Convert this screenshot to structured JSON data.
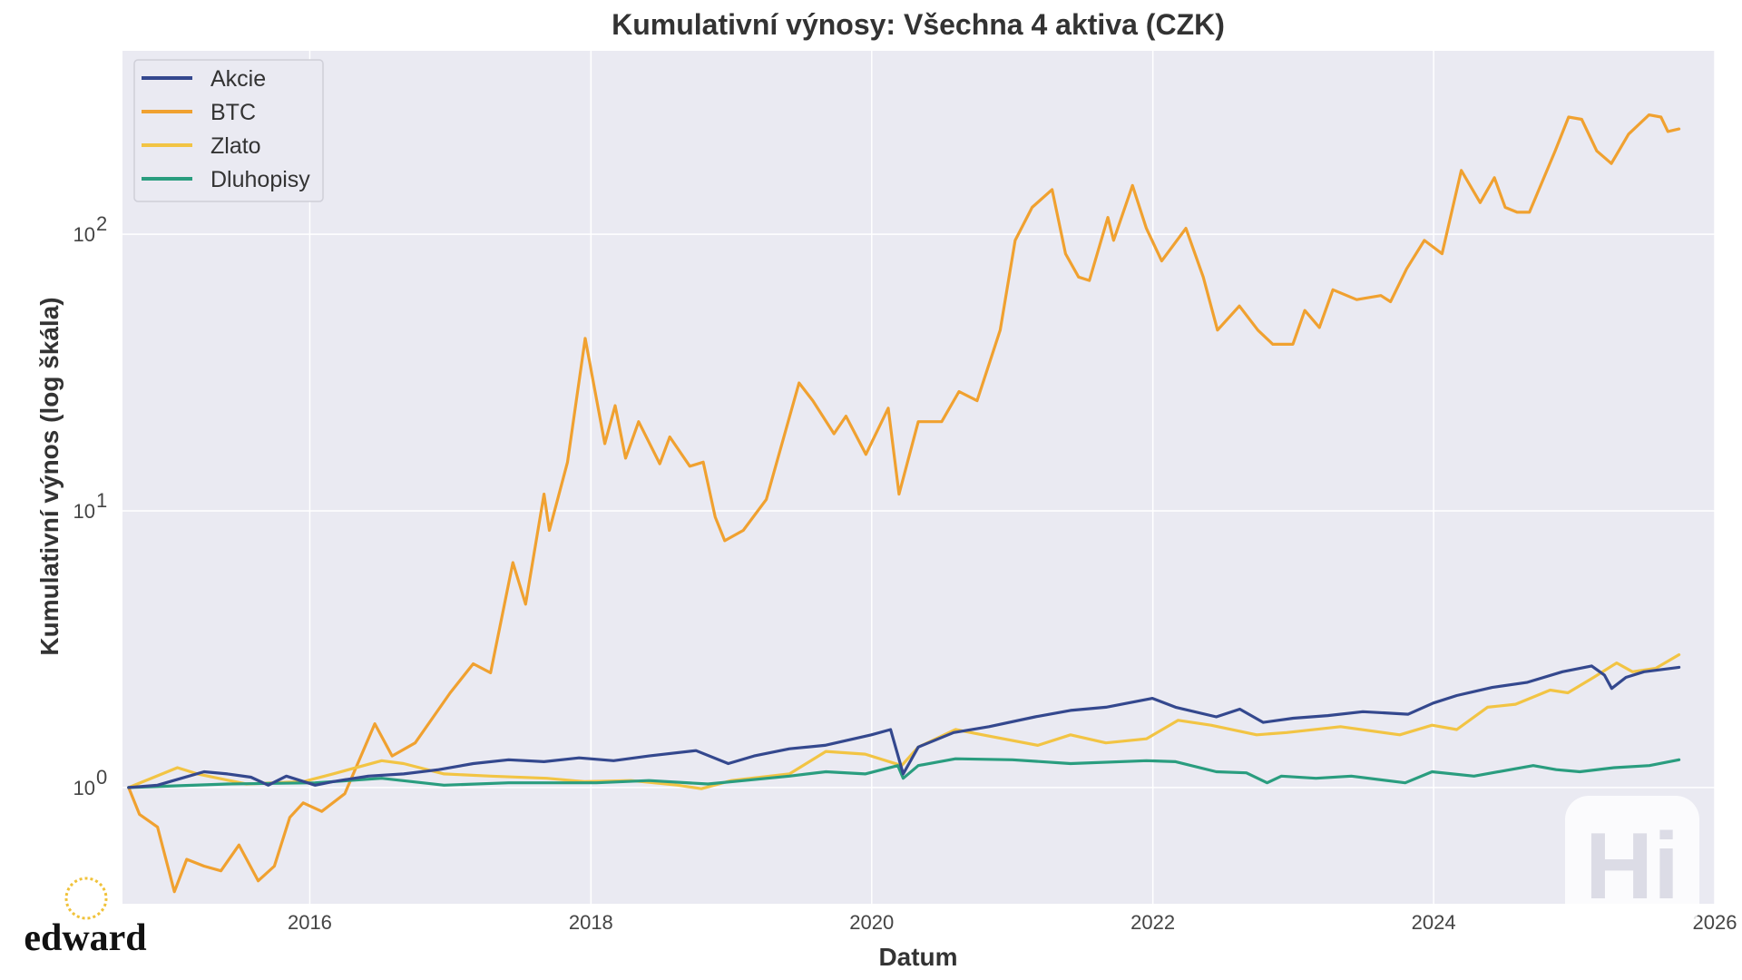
{
  "chart_data": {
    "type": "line",
    "title": "Kumulativní výnosy: Všechna 4 aktiva (CZK)",
    "xlabel": "Datum",
    "ylabel": "Kumulativní výnos (log škála)",
    "yscale": "log",
    "xlim": [
      "2014-09-01",
      "2026-01-01"
    ],
    "ylim": [
      0.38,
      460
    ],
    "xticks": [
      "2016",
      "2018",
      "2020",
      "2022",
      "2024",
      "2026"
    ],
    "yticks": [
      {
        "base": "10",
        "exp": "0",
        "value": 1
      },
      {
        "base": "10",
        "exp": "1",
        "value": 10
      },
      {
        "base": "10",
        "exp": "2",
        "value": 100
      }
    ],
    "grid": true,
    "legend_position": "top-left",
    "series": [
      {
        "name": "Akcie",
        "color": "#34488e",
        "points": [
          [
            "2014-09-17",
            1.0
          ],
          [
            "2014-12-01",
            1.02
          ],
          [
            "2015-02-01",
            1.08
          ],
          [
            "2015-04-01",
            1.14
          ],
          [
            "2015-06-01",
            1.12
          ],
          [
            "2015-08-01",
            1.09
          ],
          [
            "2015-09-15",
            1.02
          ],
          [
            "2015-11-01",
            1.1
          ],
          [
            "2016-01-15",
            1.02
          ],
          [
            "2016-03-01",
            1.05
          ],
          [
            "2016-06-01",
            1.1
          ],
          [
            "2016-09-01",
            1.12
          ],
          [
            "2016-12-01",
            1.16
          ],
          [
            "2017-03-01",
            1.22
          ],
          [
            "2017-06-01",
            1.26
          ],
          [
            "2017-09-01",
            1.24
          ],
          [
            "2017-12-01",
            1.28
          ],
          [
            "2018-03-01",
            1.25
          ],
          [
            "2018-06-01",
            1.3
          ],
          [
            "2018-10-01",
            1.36
          ],
          [
            "2018-12-24",
            1.22
          ],
          [
            "2019-03-01",
            1.3
          ],
          [
            "2019-06-01",
            1.38
          ],
          [
            "2019-09-01",
            1.42
          ],
          [
            "2019-12-31",
            1.55
          ],
          [
            "2020-02-19",
            1.62
          ],
          [
            "2020-03-23",
            1.12
          ],
          [
            "2020-05-01",
            1.4
          ],
          [
            "2020-08-01",
            1.58
          ],
          [
            "2020-11-01",
            1.66
          ],
          [
            "2021-03-01",
            1.8
          ],
          [
            "2021-06-01",
            1.9
          ],
          [
            "2021-09-01",
            1.95
          ],
          [
            "2021-12-31",
            2.1
          ],
          [
            "2022-03-01",
            1.95
          ],
          [
            "2022-06-15",
            1.8
          ],
          [
            "2022-08-15",
            1.92
          ],
          [
            "2022-10-15",
            1.72
          ],
          [
            "2023-01-01",
            1.78
          ],
          [
            "2023-04-01",
            1.82
          ],
          [
            "2023-07-01",
            1.88
          ],
          [
            "2023-10-27",
            1.84
          ],
          [
            "2023-12-31",
            2.02
          ],
          [
            "2024-03-01",
            2.15
          ],
          [
            "2024-06-01",
            2.3
          ],
          [
            "2024-09-01",
            2.4
          ],
          [
            "2024-12-01",
            2.62
          ],
          [
            "2025-02-15",
            2.75
          ],
          [
            "2025-03-20",
            2.55
          ],
          [
            "2025-04-08",
            2.28
          ],
          [
            "2025-05-15",
            2.5
          ],
          [
            "2025-07-01",
            2.62
          ],
          [
            "2025-09-30",
            2.72
          ]
        ]
      },
      {
        "name": "BTC",
        "color": "#f0a130",
        "points": [
          [
            "2014-09-17",
            1.0
          ],
          [
            "2014-10-15",
            0.8
          ],
          [
            "2014-12-01",
            0.72
          ],
          [
            "2015-01-14",
            0.42
          ],
          [
            "2015-02-15",
            0.55
          ],
          [
            "2015-04-01",
            0.52
          ],
          [
            "2015-05-15",
            0.5
          ],
          [
            "2015-07-01",
            0.62
          ],
          [
            "2015-08-20",
            0.46
          ],
          [
            "2015-10-01",
            0.52
          ],
          [
            "2015-11-10",
            0.78
          ],
          [
            "2015-12-15",
            0.88
          ],
          [
            "2016-02-01",
            0.82
          ],
          [
            "2016-04-01",
            0.95
          ],
          [
            "2016-06-18",
            1.7
          ],
          [
            "2016-08-02",
            1.3
          ],
          [
            "2016-10-01",
            1.45
          ],
          [
            "2016-12-31",
            2.2
          ],
          [
            "2017-03-01",
            2.8
          ],
          [
            "2017-04-15",
            2.6
          ],
          [
            "2017-06-12",
            6.5
          ],
          [
            "2017-07-15",
            4.6
          ],
          [
            "2017-09-01",
            11.5
          ],
          [
            "2017-09-15",
            8.5
          ],
          [
            "2017-11-01",
            15.0
          ],
          [
            "2017-12-17",
            42.0
          ],
          [
            "2018-02-06",
            17.5
          ],
          [
            "2018-03-05",
            24.0
          ],
          [
            "2018-04-01",
            15.5
          ],
          [
            "2018-05-05",
            21.0
          ],
          [
            "2018-06-29",
            14.8
          ],
          [
            "2018-07-25",
            18.5
          ],
          [
            "2018-09-15",
            14.5
          ],
          [
            "2018-10-20",
            15.0
          ],
          [
            "2018-11-20",
            9.5
          ],
          [
            "2018-12-15",
            7.8
          ],
          [
            "2019-02-01",
            8.5
          ],
          [
            "2019-04-02",
            11.0
          ],
          [
            "2019-06-26",
            29.0
          ],
          [
            "2019-08-01",
            25.0
          ],
          [
            "2019-09-25",
            19.0
          ],
          [
            "2019-10-26",
            22.0
          ],
          [
            "2019-12-17",
            16.0
          ],
          [
            "2020-02-13",
            23.5
          ],
          [
            "2020-03-12",
            11.5
          ],
          [
            "2020-05-01",
            21.0
          ],
          [
            "2020-07-01",
            21.0
          ],
          [
            "2020-08-15",
            27.0
          ],
          [
            "2020-10-01",
            25.0
          ],
          [
            "2020-11-30",
            45.0
          ],
          [
            "2021-01-08",
            95.0
          ],
          [
            "2021-02-21",
            125.0
          ],
          [
            "2021-04-14",
            145.0
          ],
          [
            "2021-05-19",
            85.0
          ],
          [
            "2021-06-22",
            70.0
          ],
          [
            "2021-07-20",
            68.0
          ],
          [
            "2021-09-06",
            115.0
          ],
          [
            "2021-09-21",
            95.0
          ],
          [
            "2021-11-09",
            150.0
          ],
          [
            "2021-12-15",
            105.0
          ],
          [
            "2022-01-24",
            80.0
          ],
          [
            "2022-03-28",
            105.0
          ],
          [
            "2022-05-12",
            70.0
          ],
          [
            "2022-06-18",
            45.0
          ],
          [
            "2022-08-14",
            55.0
          ],
          [
            "2022-10-01",
            45.0
          ],
          [
            "2022-11-09",
            40.0
          ],
          [
            "2022-12-31",
            40.0
          ],
          [
            "2023-01-31",
            53.0
          ],
          [
            "2023-03-10",
            46.0
          ],
          [
            "2023-04-14",
            63.0
          ],
          [
            "2023-06-15",
            58.0
          ],
          [
            "2023-08-17",
            60.0
          ],
          [
            "2023-09-11",
            57.0
          ],
          [
            "2023-10-23",
            75.0
          ],
          [
            "2023-12-08",
            95.0
          ],
          [
            "2024-01-23",
            85.0
          ],
          [
            "2024-03-13",
            170.0
          ],
          [
            "2024-05-01",
            130.0
          ],
          [
            "2024-06-07",
            160.0
          ],
          [
            "2024-07-05",
            125.0
          ],
          [
            "2024-08-05",
            120.0
          ],
          [
            "2024-09-06",
            120.0
          ],
          [
            "2024-11-12",
            200.0
          ],
          [
            "2024-12-17",
            265.0
          ],
          [
            "2025-01-20",
            260.0
          ],
          [
            "2025-02-28",
            200.0
          ],
          [
            "2025-04-07",
            180.0
          ],
          [
            "2025-05-22",
            230.0
          ],
          [
            "2025-07-14",
            270.0
          ],
          [
            "2025-08-14",
            265.0
          ],
          [
            "2025-09-01",
            235.0
          ],
          [
            "2025-09-30",
            240.0
          ]
        ]
      },
      {
        "name": "Zlato",
        "color": "#f2c444",
        "points": [
          [
            "2014-09-17",
            1.0
          ],
          [
            "2015-01-22",
            1.18
          ],
          [
            "2015-03-15",
            1.12
          ],
          [
            "2015-07-20",
            1.03
          ],
          [
            "2015-12-15",
            1.05
          ],
          [
            "2016-03-01",
            1.12
          ],
          [
            "2016-07-06",
            1.25
          ],
          [
            "2016-09-01",
            1.22
          ],
          [
            "2016-12-15",
            1.12
          ],
          [
            "2017-04-15",
            1.1
          ],
          [
            "2017-09-08",
            1.08
          ],
          [
            "2017-12-15",
            1.05
          ],
          [
            "2018-04-15",
            1.06
          ],
          [
            "2018-08-15",
            1.02
          ],
          [
            "2018-10-15",
            0.99
          ],
          [
            "2019-01-01",
            1.06
          ],
          [
            "2019-06-01",
            1.12
          ],
          [
            "2019-09-04",
            1.35
          ],
          [
            "2019-12-15",
            1.32
          ],
          [
            "2020-03-19",
            1.2
          ],
          [
            "2020-05-01",
            1.4
          ],
          [
            "2020-08-06",
            1.62
          ],
          [
            "2020-10-15",
            1.55
          ],
          [
            "2021-03-08",
            1.42
          ],
          [
            "2021-06-01",
            1.55
          ],
          [
            "2021-09-01",
            1.45
          ],
          [
            "2021-12-15",
            1.5
          ],
          [
            "2022-03-08",
            1.75
          ],
          [
            "2022-06-01",
            1.68
          ],
          [
            "2022-09-28",
            1.55
          ],
          [
            "2022-12-15",
            1.58
          ],
          [
            "2023-05-04",
            1.66
          ],
          [
            "2023-10-05",
            1.55
          ],
          [
            "2023-12-28",
            1.68
          ],
          [
            "2024-03-01",
            1.62
          ],
          [
            "2024-05-20",
            1.95
          ],
          [
            "2024-08-01",
            2.0
          ],
          [
            "2024-10-30",
            2.25
          ],
          [
            "2024-12-15",
            2.2
          ],
          [
            "2025-02-20",
            2.5
          ],
          [
            "2025-04-21",
            2.82
          ],
          [
            "2025-06-01",
            2.62
          ],
          [
            "2025-08-01",
            2.7
          ],
          [
            "2025-09-30",
            3.02
          ]
        ]
      },
      {
        "name": "Dluhopisy",
        "color": "#2a9d7f",
        "points": [
          [
            "2014-09-17",
            1.0
          ],
          [
            "2015-06-01",
            1.03
          ],
          [
            "2016-01-15",
            1.04
          ],
          [
            "2016-07-06",
            1.08
          ],
          [
            "2016-12-15",
            1.02
          ],
          [
            "2017-06-01",
            1.04
          ],
          [
            "2018-01-15",
            1.04
          ],
          [
            "2018-06-01",
            1.06
          ],
          [
            "2018-11-01",
            1.03
          ],
          [
            "2019-06-01",
            1.1
          ],
          [
            "2019-09-04",
            1.14
          ],
          [
            "2019-12-15",
            1.12
          ],
          [
            "2020-03-09",
            1.2
          ],
          [
            "2020-03-23",
            1.08
          ],
          [
            "2020-05-01",
            1.2
          ],
          [
            "2020-08-06",
            1.27
          ],
          [
            "2021-01-01",
            1.26
          ],
          [
            "2021-06-01",
            1.22
          ],
          [
            "2021-12-15",
            1.25
          ],
          [
            "2022-03-01",
            1.24
          ],
          [
            "2022-06-15",
            1.14
          ],
          [
            "2022-09-01",
            1.13
          ],
          [
            "2022-10-25",
            1.04
          ],
          [
            "2022-12-01",
            1.1
          ],
          [
            "2023-03-01",
            1.08
          ],
          [
            "2023-06-01",
            1.1
          ],
          [
            "2023-10-19",
            1.04
          ],
          [
            "2023-12-28",
            1.14
          ],
          [
            "2024-04-15",
            1.1
          ],
          [
            "2024-09-16",
            1.2
          ],
          [
            "2024-11-15",
            1.16
          ],
          [
            "2025-01-15",
            1.14
          ],
          [
            "2025-04-15",
            1.18
          ],
          [
            "2025-07-15",
            1.2
          ],
          [
            "2025-09-30",
            1.26
          ]
        ]
      }
    ]
  },
  "branding": {
    "logo_text": "edward",
    "watermark_text": "Hi"
  }
}
